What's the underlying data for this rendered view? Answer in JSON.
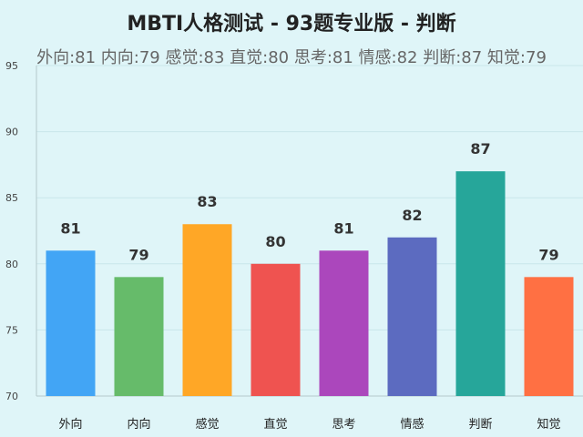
{
  "chart_data": {
    "type": "bar",
    "title": "MBTI人格测试 - 93题专业版 - 判断",
    "subtitle": "外向:81 内向:79 感觉:83 直觉:80 思考:81 情感:82 判断:87 知觉:79",
    "categories": [
      "外向",
      "内向",
      "感觉",
      "直觉",
      "思考",
      "情感",
      "判断",
      "知觉"
    ],
    "values": [
      81,
      79,
      83,
      80,
      81,
      82,
      87,
      79
    ],
    "colors": [
      "#42a5f5",
      "#66bb6a",
      "#ffa726",
      "#ef5350",
      "#ab47bc",
      "#5c6bc0",
      "#26a69a",
      "#ff7043"
    ],
    "ylim": [
      70,
      95
    ],
    "yticks": [
      70,
      75,
      80,
      85,
      90,
      95
    ],
    "grid": true,
    "xlabel": "",
    "ylabel": ""
  }
}
